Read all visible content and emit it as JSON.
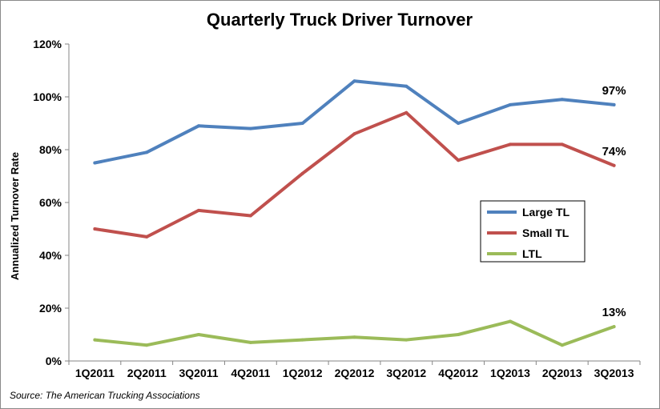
{
  "chart_data": {
    "type": "line",
    "title": "Quarterly Truck Driver Turnover",
    "xlabel": "",
    "ylabel": "Annualized Turnover Rate",
    "ylim": [
      0,
      120
    ],
    "yticks": [
      "0%",
      "20%",
      "40%",
      "60%",
      "80%",
      "100%",
      "120%"
    ],
    "categories": [
      "1Q2011",
      "2Q2011",
      "3Q2011",
      "4Q2011",
      "1Q2012",
      "2Q2012",
      "3Q2012",
      "4Q2012",
      "1Q2013",
      "2Q2013",
      "3Q2013"
    ],
    "series": [
      {
        "name": "Large TL",
        "color": "#4f81bd",
        "values": [
          75,
          79,
          89,
          88,
          90,
          106,
          104,
          90,
          97,
          99,
          97
        ],
        "end_label": "97%"
      },
      {
        "name": "Small TL",
        "color": "#c0504d",
        "values": [
          50,
          47,
          57,
          55,
          71,
          86,
          94,
          76,
          82,
          82,
          74
        ],
        "end_label": "74%"
      },
      {
        "name": "LTL",
        "color": "#9bbb59",
        "values": [
          8,
          6,
          10,
          7,
          8,
          9,
          8,
          10,
          15,
          6,
          13
        ],
        "end_label": "13%"
      }
    ],
    "grid": false,
    "legend_position": "right"
  },
  "source_note": "Source:  The American Trucking Associations"
}
